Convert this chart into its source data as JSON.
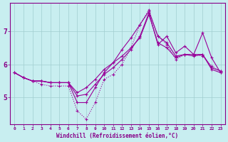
{
  "background_color": "#c8eef0",
  "line_color": "#990099",
  "marker": "+",
  "grid_color": "#a0cdd0",
  "xlabel": "Windchill (Refroidissement éolien,°C)",
  "xlabel_color": "#880088",
  "tick_color": "#880088",
  "ylim": [
    4.2,
    7.85
  ],
  "xlim": [
    -0.5,
    23.5
  ],
  "yticks": [
    5,
    6,
    7
  ],
  "xticks": [
    0,
    1,
    2,
    3,
    4,
    5,
    6,
    7,
    8,
    9,
    10,
    11,
    12,
    13,
    14,
    15,
    16,
    17,
    18,
    19,
    20,
    21,
    22,
    23
  ],
  "series": [
    {
      "x": [
        0,
        1,
        2,
        3,
        4,
        5,
        6,
        7,
        8,
        9,
        10,
        11,
        12,
        13,
        14,
        15,
        16,
        17,
        18,
        19,
        20,
        21,
        22,
        23
      ],
      "y": [
        5.75,
        5.6,
        5.5,
        5.5,
        5.45,
        5.45,
        5.45,
        5.15,
        5.3,
        5.55,
        5.85,
        6.05,
        6.25,
        6.5,
        6.8,
        7.5,
        6.65,
        6.5,
        6.2,
        6.3,
        6.25,
        6.3,
        5.85,
        5.75
      ],
      "dotted": false
    },
    {
      "x": [
        0,
        1,
        2,
        3,
        4,
        5,
        6,
        7,
        8,
        9,
        10,
        11,
        12,
        13,
        14,
        15,
        16,
        17,
        18,
        19,
        20,
        21,
        22,
        23
      ],
      "y": [
        5.75,
        5.6,
        5.5,
        5.5,
        5.45,
        5.45,
        5.45,
        5.05,
        5.1,
        5.4,
        5.7,
        5.9,
        6.15,
        6.45,
        6.85,
        7.55,
        6.6,
        6.85,
        6.35,
        6.55,
        6.3,
        6.95,
        6.2,
        5.75
      ],
      "dotted": false
    },
    {
      "x": [
        0,
        1,
        2,
        3,
        4,
        5,
        6,
        7,
        8,
        9,
        10,
        11,
        12,
        13,
        14,
        15,
        16,
        17,
        18,
        19,
        20,
        21,
        22,
        23
      ],
      "y": [
        5.75,
        5.6,
        5.5,
        5.5,
        5.45,
        5.45,
        5.45,
        4.85,
        4.85,
        5.3,
        5.75,
        6.05,
        6.45,
        6.8,
        7.2,
        7.6,
        6.85,
        6.65,
        6.25,
        6.3,
        6.3,
        6.3,
        5.9,
        5.8
      ],
      "dotted": false
    },
    {
      "x": [
        2,
        3,
        4,
        5,
        6,
        7,
        8,
        9,
        10,
        11,
        12,
        13,
        14,
        15,
        16,
        17,
        18,
        19,
        20,
        21,
        22,
        23
      ],
      "y": [
        5.5,
        5.4,
        5.35,
        5.35,
        5.35,
        4.6,
        4.35,
        4.85,
        5.55,
        5.7,
        6.0,
        6.5,
        7.2,
        7.65,
        6.85,
        6.6,
        6.15,
        6.3,
        6.3,
        6.25,
        5.95,
        5.8
      ],
      "dotted": true
    }
  ],
  "figsize": [
    3.2,
    2.0
  ],
  "dpi": 100
}
